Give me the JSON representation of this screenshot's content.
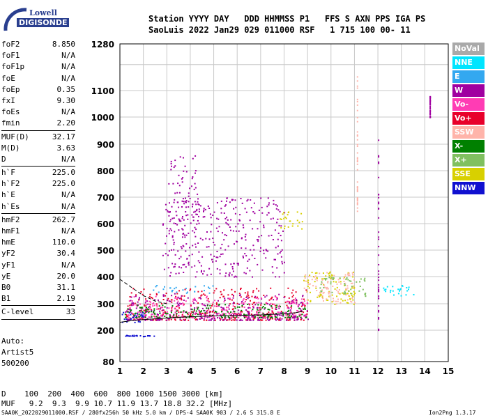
{
  "logo": {
    "top": "Lowell",
    "bottom": "DIGISONDE"
  },
  "header": {
    "line1": "Station YYYY DAY   DDD HHMMSS P1   FFS S AXN PPS IGA PS",
    "line2": "SaoLuis 2022 Jan29 029 011000 RSF   1 715 100 00- 11"
  },
  "params": [
    {
      "name": "foF2",
      "value": "8.850"
    },
    {
      "name": "foF1",
      "value": "N/A"
    },
    {
      "name": "foF1p",
      "value": "N/A"
    },
    {
      "name": "foE",
      "value": "N/A"
    },
    {
      "name": "foEp",
      "value": "0.35"
    },
    {
      "name": "fxI",
      "value": "9.30"
    },
    {
      "name": "foEs",
      "value": "N/A"
    },
    {
      "name": "fmin",
      "value": "2.20"
    },
    {
      "sep": true
    },
    {
      "name": "MUF(D)",
      "value": "32.17"
    },
    {
      "name": "M(D)",
      "value": "3.63"
    },
    {
      "name": "D",
      "value": "N/A"
    },
    {
      "sep": true
    },
    {
      "name": "h`F",
      "value": "225.0"
    },
    {
      "name": "h`F2",
      "value": "225.0"
    },
    {
      "name": "h`E",
      "value": "N/A"
    },
    {
      "name": "h`Es",
      "value": "N/A"
    },
    {
      "sep": true
    },
    {
      "name": "hmF2",
      "value": "262.7"
    },
    {
      "name": "hmF1",
      "value": "N/A"
    },
    {
      "name": "hmE",
      "value": "110.0"
    },
    {
      "name": "yF2",
      "value": "30.4"
    },
    {
      "name": "yF1",
      "value": "N/A"
    },
    {
      "name": "yE",
      "value": "20.0"
    },
    {
      "name": "B0",
      "value": "31.1"
    },
    {
      "name": "B1",
      "value": "2.19"
    },
    {
      "sep": true
    },
    {
      "name": "C-level",
      "value": "33"
    },
    {
      "sep": true
    }
  ],
  "auto": {
    "line1": "Auto:",
    "line2": "Artist5",
    "line3": "500200"
  },
  "legend": [
    {
      "label": "NoVal",
      "color": "#a9a9a9"
    },
    {
      "label": "NNE",
      "color": "#00e5ff"
    },
    {
      "label": "E",
      "color": "#33a8f0"
    },
    {
      "label": "W",
      "color": "#a000a0"
    },
    {
      "label": "Vo-",
      "color": "#ff3cb4"
    },
    {
      "label": "Vo+",
      "color": "#e8002a"
    },
    {
      "label": "SSW",
      "color": "#ffb4aa"
    },
    {
      "label": "X-",
      "color": "#008000"
    },
    {
      "label": "X+",
      "color": "#80c060"
    },
    {
      "label": "SSE",
      "color": "#d8d000"
    },
    {
      "label": "NNW",
      "color": "#1010d0"
    }
  ],
  "chart_data": {
    "type": "scatter",
    "title": "",
    "xlabel": "",
    "ylabel": "",
    "xlim": [
      1,
      15
    ],
    "ylim": [
      80,
      1280
    ],
    "xticks": [
      1,
      2,
      3,
      4,
      5,
      6,
      7,
      8,
      9,
      10,
      11,
      12,
      13,
      14,
      15
    ],
    "yticks": [
      80,
      200,
      300,
      400,
      500,
      600,
      700,
      800,
      900,
      1000,
      1100,
      1280
    ],
    "y_scale": "log-like (virtual height, km)",
    "grid": true,
    "profile_curve": {
      "x": [
        1.0,
        1.5,
        2.0,
        3.0,
        4.0,
        5.0,
        6.0,
        7.0,
        8.0,
        8.5,
        8.8
      ],
      "y": [
        230,
        236,
        240,
        246,
        251,
        254,
        256,
        258,
        262,
        266,
        272
      ]
    },
    "dashed_curve": {
      "x": [
        1.0,
        1.5,
        2.0,
        2.5,
        3.0
      ],
      "y": [
        390,
        360,
        330,
        310,
        300
      ]
    },
    "clusters": [
      {
        "name": "F-trace main",
        "x_range": [
          1.2,
          9.0
        ],
        "y_range": [
          240,
          360
        ],
        "color": "#e8002a"
      },
      {
        "name": "F-trace main",
        "x_range": [
          1.2,
          9.0
        ],
        "y_range": [
          240,
          340
        ],
        "color": "#a000a0"
      },
      {
        "name": "F-trace main",
        "x_range": [
          1.2,
          9.0
        ],
        "y_range": [
          250,
          330
        ],
        "color": "#ff3cb4"
      },
      {
        "name": "F-trace main",
        "x_range": [
          1.2,
          9.0
        ],
        "y_range": [
          250,
          300
        ],
        "color": "#008000"
      },
      {
        "name": "low echo",
        "x_range": [
          1.0,
          2.0
        ],
        "y_range": [
          230,
          270
        ],
        "color": "#1010d0"
      },
      {
        "name": "X-trace",
        "x_range": [
          8.8,
          11.0
        ],
        "y_range": [
          300,
          420
        ],
        "color": "#d8d000"
      },
      {
        "name": "X-trace",
        "x_range": [
          8.8,
          11.0
        ],
        "y_range": [
          300,
          420
        ],
        "color": "#ffb4aa"
      },
      {
        "name": "X-trace",
        "x_range": [
          9.5,
          11.5
        ],
        "y_range": [
          330,
          400
        ],
        "color": "#80c060"
      },
      {
        "name": "oblique echoes",
        "x_range": [
          12.0,
          13.5
        ],
        "y_range": [
          330,
          370
        ],
        "color": "#00e5ff"
      },
      {
        "name": "spread F",
        "x_range": [
          2.8,
          8.0
        ],
        "y_range": [
          400,
          700
        ],
        "color": "#a000a0"
      },
      {
        "name": "spread F",
        "x_range": [
          3.0,
          4.3
        ],
        "y_range": [
          550,
          860
        ],
        "color": "#a000a0"
      },
      {
        "name": "upper echoes",
        "x_range": [
          7.8,
          8.8
        ],
        "y_range": [
          580,
          650
        ],
        "color": "#d8d000"
      },
      {
        "name": "blue band",
        "x_range": [
          2.3,
          5.0
        ],
        "y_range": [
          340,
          370
        ],
        "color": "#33a8f0"
      },
      {
        "name": "low blips",
        "x_range": [
          1.2,
          2.5
        ],
        "y_range": [
          178,
          183
        ],
        "color": "#1010d0"
      }
    ]
  },
  "bottom": {
    "d_line": "D    100  200  400  600  800 1000 1500 3000 [km]",
    "muf_line": "MUF   9.2  9.3  9.9 10.7 11.9 13.7 18.8 32.2 [MHz]"
  },
  "footer": {
    "left": "SAA0K_2022029011000.RSF / 280fx256h 50 kHz 5.0 km / DPS-4 SAA0K 903 / 2.6 S 315.8 E",
    "right": "Ion2Png 1.3.17"
  }
}
